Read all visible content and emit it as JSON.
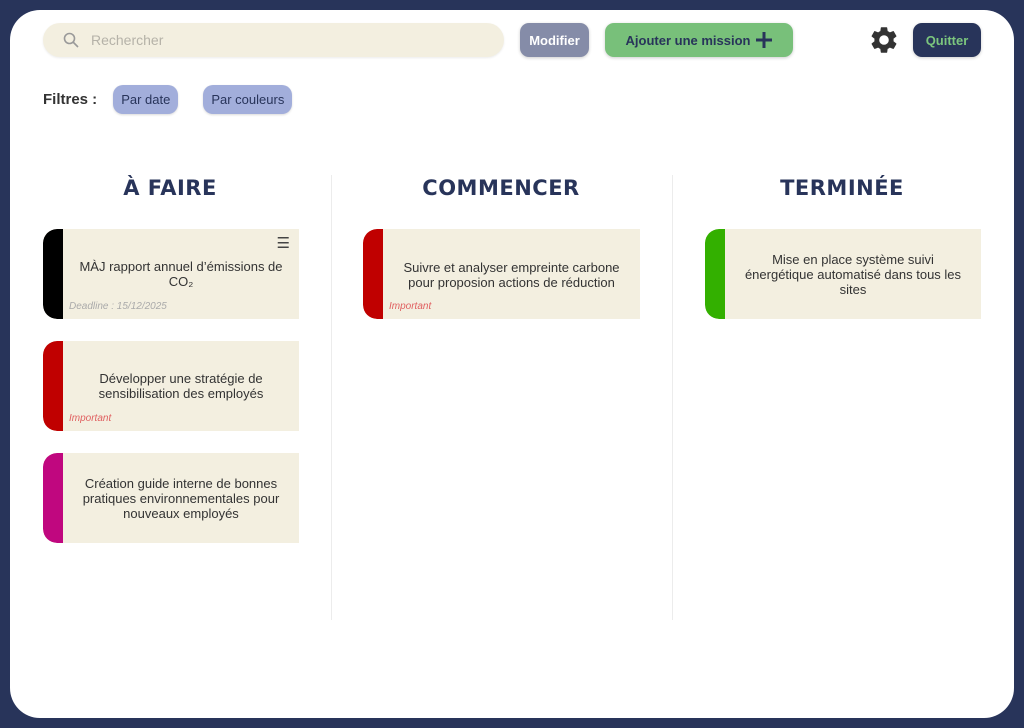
{
  "search": {
    "placeholder": "Rechercher",
    "icon": "search-icon"
  },
  "toolbar": {
    "modify_label": "Modifier",
    "add_label": "Ajouter une mission",
    "quit_label": "Quitter",
    "settings_icon": "gear-icon"
  },
  "filters": {
    "label": "Filtres :",
    "items": [
      "Par date",
      "Par couleurs"
    ]
  },
  "columns": [
    {
      "title": "À FAIRE",
      "cards": [
        {
          "text": "MÀJ rapport annuel d’émissions de CO₂",
          "meta": "Deadline : 15/12/2025",
          "color": "#000000"
        },
        {
          "text": "Développer une stratégie de sensibilisation des employés",
          "meta": "Important",
          "color": "#c00000"
        },
        {
          "text": "Création guide interne de bonnes pratiques environnementales pour nouveaux employés",
          "color": "#c0077f"
        }
      ]
    },
    {
      "title": "COMMENCER",
      "cards": [
        {
          "text": "Suivre et analyser empreinte carbone pour proposion actions de réduction",
          "meta": "Important",
          "color": "#c00000"
        }
      ]
    },
    {
      "title": "TERMINÉE",
      "cards": [
        {
          "text": "Mise en place système suivi énergétique automatisé dans tous les sites",
          "color": "#33b000"
        }
      ]
    }
  ]
}
